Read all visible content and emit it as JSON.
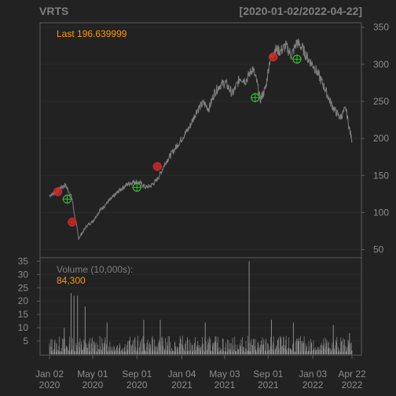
{
  "chart_data": [
    {
      "type": "line",
      "title": "VRTS",
      "date_range": "[2020-01-02/2022-04-22]",
      "last_label": "Last 196.639999",
      "ylim": [
        40,
        355
      ],
      "y_ticks": [
        50,
        100,
        150,
        200,
        250,
        300,
        350
      ],
      "x_ticks": [
        {
          "line1": "Jan 02",
          "line2": "2020",
          "date": "2020-01-02"
        },
        {
          "line1": "May 01",
          "line2": "2020",
          "date": "2020-05-01"
        },
        {
          "line1": "Sep 01",
          "line2": "2020",
          "date": "2020-09-01"
        },
        {
          "line1": "Jan 04",
          "line2": "2021",
          "date": "2021-01-04"
        },
        {
          "line1": "May 03",
          "line2": "2021",
          "date": "2021-05-03"
        },
        {
          "line1": "Sep 01",
          "line2": "2021",
          "date": "2021-09-01"
        },
        {
          "line1": "Jan 03",
          "line2": "2022",
          "date": "2022-01-03"
        },
        {
          "line1": "Apr 22",
          "line2": "2022",
          "date": "2022-04-22"
        }
      ],
      "series": [
        {
          "x": [
            "2020-01-02",
            "2020-01-15",
            "2020-02-01",
            "2020-02-15",
            "2020-02-25",
            "2020-03-05",
            "2020-03-12",
            "2020-03-18",
            "2020-03-23",
            "2020-04-01",
            "2020-04-15",
            "2020-05-01",
            "2020-05-20",
            "2020-06-08",
            "2020-06-25",
            "2020-07-15",
            "2020-08-05",
            "2020-08-25",
            "2020-09-10",
            "2020-09-25",
            "2020-10-10",
            "2020-10-25",
            "2020-11-05",
            "2020-11-20",
            "2020-12-10",
            "2021-01-04",
            "2021-01-25",
            "2021-02-15",
            "2021-03-05",
            "2021-03-20",
            "2021-04-05",
            "2021-04-20",
            "2021-05-05",
            "2021-05-25",
            "2021-06-15",
            "2021-07-01",
            "2021-07-20",
            "2021-08-01",
            "2021-08-10",
            "2021-08-25",
            "2021-09-05",
            "2021-09-20",
            "2021-10-05",
            "2021-10-20",
            "2021-11-05",
            "2021-11-20",
            "2021-12-05",
            "2021-12-20",
            "2022-01-05",
            "2022-01-20",
            "2022-02-05",
            "2022-02-20",
            "2022-03-05",
            "2022-03-20",
            "2022-04-05",
            "2022-04-15",
            "2022-04-22"
          ],
          "values": [
            123,
            126,
            133,
            137,
            128,
            118,
            95,
            80,
            65,
            72,
            82,
            88,
            102,
            112,
            120,
            130,
            138,
            142,
            140,
            134,
            136,
            143,
            152,
            168,
            182,
            200,
            215,
            238,
            248,
            240,
            262,
            272,
            275,
            260,
            282,
            278,
            295,
            275,
            252,
            268,
            305,
            320,
            318,
            325,
            312,
            330,
            322,
            308,
            298,
            285,
            268,
            250,
            238,
            228,
            240,
            212,
            196.64
          ],
          "color": "#7f7f7f"
        }
      ],
      "markers": [
        {
          "date": "2020-01-25",
          "value": 128,
          "kind": "sell",
          "color": "#cc2a2a"
        },
        {
          "date": "2020-02-20",
          "value": 118,
          "kind": "buy",
          "color": "#2ec22e"
        },
        {
          "date": "2020-03-05",
          "value": 87,
          "kind": "sell",
          "color": "#cc2a2a"
        },
        {
          "date": "2020-09-01",
          "value": 134,
          "kind": "buy",
          "color": "#2ec22e"
        },
        {
          "date": "2020-10-28",
          "value": 162,
          "kind": "sell",
          "color": "#cc2a2a"
        },
        {
          "date": "2021-07-27",
          "value": 255,
          "kind": "buy",
          "color": "#2ec22e"
        },
        {
          "date": "2021-09-15",
          "value": 310,
          "kind": "sell",
          "color": "#cc2a2a"
        },
        {
          "date": "2021-11-20",
          "value": 307,
          "kind": "buy",
          "color": "#2ec22e"
        }
      ]
    },
    {
      "type": "bar",
      "label": "Volume (10,000s):",
      "last_value": "84,300",
      "ylim": [
        0,
        36
      ],
      "y_ticks": [
        5,
        10,
        15,
        20,
        25,
        30,
        35
      ],
      "color": "#8a8a8a",
      "notable_bars": [
        {
          "date": "2020-02-12",
          "value": 10
        },
        {
          "date": "2020-03-02",
          "value": 23
        },
        {
          "date": "2020-03-10",
          "value": 22
        },
        {
          "date": "2020-03-20",
          "value": 22
        },
        {
          "date": "2020-04-10",
          "value": 18
        },
        {
          "date": "2020-06-10",
          "value": 12
        },
        {
          "date": "2020-09-20",
          "value": 13
        },
        {
          "date": "2020-11-05",
          "value": 13
        },
        {
          "date": "2021-03-10",
          "value": 12
        },
        {
          "date": "2021-07-10",
          "value": 35
        },
        {
          "date": "2021-09-10",
          "value": 13
        },
        {
          "date": "2021-11-10",
          "value": 12
        },
        {
          "date": "2022-03-01",
          "value": 11
        },
        {
          "date": "2022-04-15",
          "value": 8
        }
      ]
    }
  ],
  "colors": {
    "background": "#222222",
    "grid": "#2b2b2b",
    "text": "#8c8c8c",
    "accent": "#ff9900"
  }
}
